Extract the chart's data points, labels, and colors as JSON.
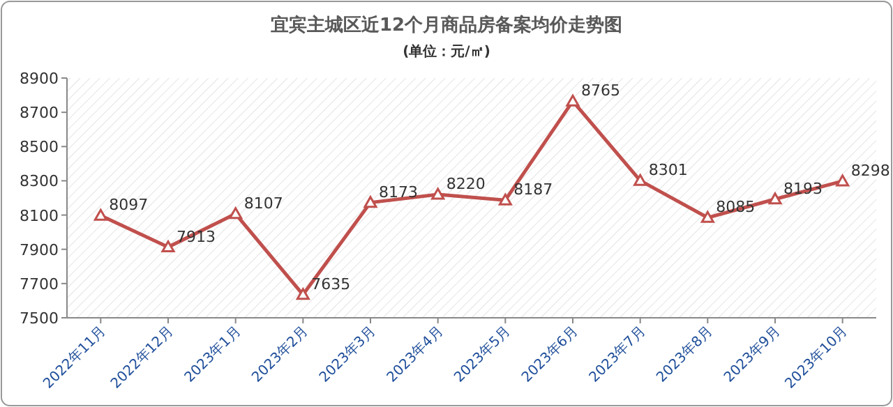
{
  "chart_data": {
    "type": "line",
    "title": "宜宾主城区近12个月商品房备案均价走势图",
    "subtitle": "(单位：元/㎡)",
    "categories": [
      "2022年11月",
      "2022年12月",
      "2023年1月",
      "2023年2月",
      "2023年3月",
      "2023年4月",
      "2023年5月",
      "2023年6月",
      "2023年7月",
      "2023年8月",
      "2023年9月",
      "2023年10月"
    ],
    "series": [
      {
        "color": "#c0504d",
        "values": [
          8097,
          7913,
          8107,
          7635,
          8173,
          8220,
          8187,
          8765,
          8301,
          8085,
          8193,
          8298
        ]
      }
    ],
    "ylim": [
      7500,
      8900
    ],
    "yticks": [
      7500,
      7700,
      7900,
      8100,
      8300,
      8500,
      8700,
      8900
    ],
    "marker": "triangle",
    "data_labels": true,
    "grid": false
  }
}
